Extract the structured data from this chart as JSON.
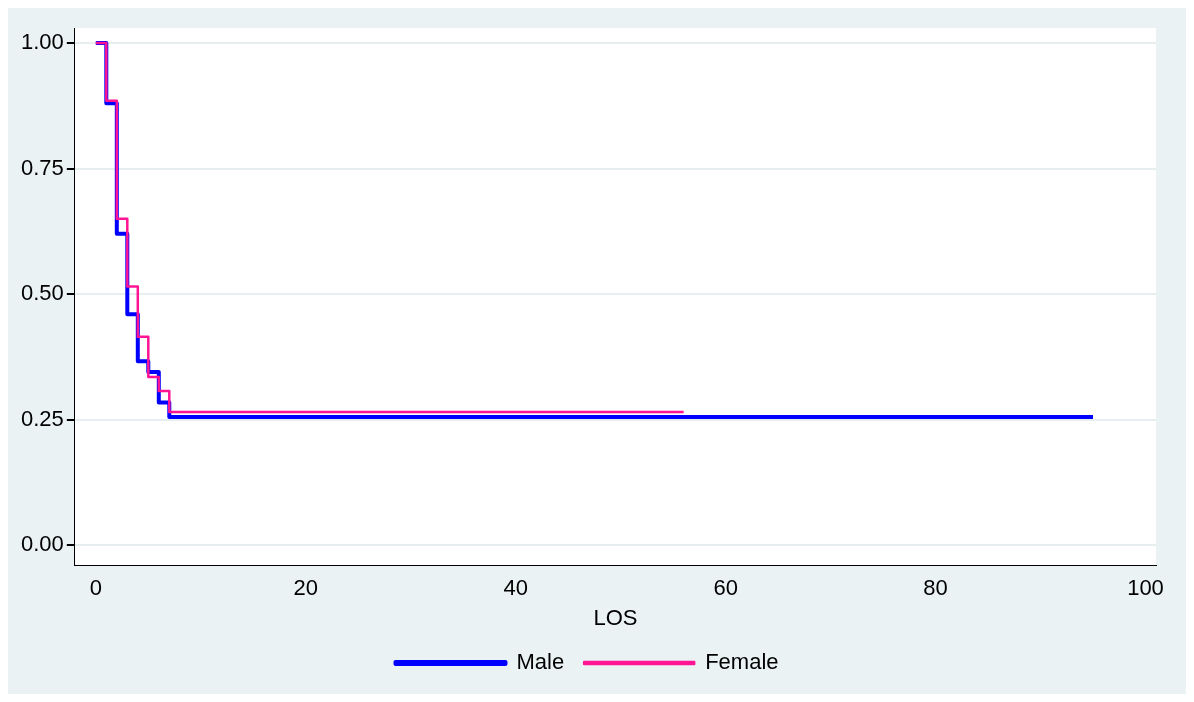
{
  "chart_data": {
    "type": "step",
    "xlabel": "LOS",
    "xlim": [
      -2,
      101
    ],
    "xticks": [
      0,
      20,
      40,
      60,
      80,
      100
    ],
    "ylim": [
      -0.04,
      1.03
    ],
    "yticks": [
      {
        "value": 0,
        "label": "0.00"
      },
      {
        "value": 0.25,
        "label": "0.25"
      },
      {
        "value": 0.5,
        "label": "0.50"
      },
      {
        "value": 0.75,
        "label": "0.75"
      },
      {
        "value": 1,
        "label": "1.00"
      }
    ],
    "grid": "y",
    "legend": "bottom",
    "marker": "none",
    "line_style": "solid",
    "series": [
      {
        "name": "Male",
        "color": "#0000ff",
        "x": [
          0,
          1,
          2,
          3,
          4,
          5,
          6,
          7,
          95
        ],
        "values": [
          1,
          0.88,
          0.62,
          0.46,
          0.366,
          0.345,
          0.284,
          0.255,
          0.255
        ]
      },
      {
        "name": "Female",
        "color": "#ff1493",
        "x": [
          0,
          1,
          2,
          3,
          4,
          5,
          6,
          7,
          56
        ],
        "values": [
          1,
          0.885,
          0.65,
          0.515,
          0.415,
          0.335,
          0.307,
          0.265,
          0.265
        ]
      }
    ]
  }
}
